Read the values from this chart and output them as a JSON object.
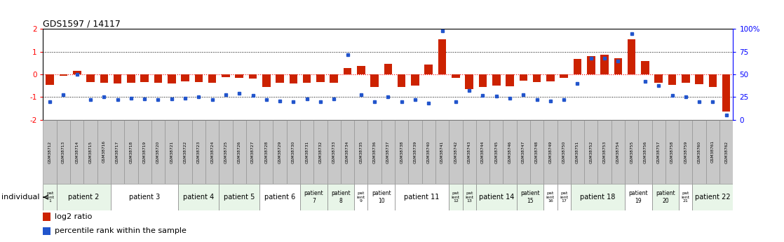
{
  "title": "GDS1597 / 14117",
  "samples": [
    "GSM38712",
    "GSM38713",
    "GSM38714",
    "GSM38715",
    "GSM38716",
    "GSM38717",
    "GSM38718",
    "GSM38719",
    "GSM38720",
    "GSM38721",
    "GSM38722",
    "GSM38723",
    "GSM38724",
    "GSM38725",
    "GSM38726",
    "GSM38727",
    "GSM38728",
    "GSM38729",
    "GSM38730",
    "GSM38731",
    "GSM38732",
    "GSM38733",
    "GSM38734",
    "GSM38735",
    "GSM38736",
    "GSM38737",
    "GSM38738",
    "GSM38739",
    "GSM38740",
    "GSM38741",
    "GSM38742",
    "GSM38743",
    "GSM38744",
    "GSM38745",
    "GSM38746",
    "GSM38747",
    "GSM38748",
    "GSM38749",
    "GSM38750",
    "GSM38751",
    "GSM38752",
    "GSM38753",
    "GSM38754",
    "GSM38755",
    "GSM38756",
    "GSM38757",
    "GSM38758",
    "GSM38759",
    "GSM38760",
    "GSM38761",
    "GSM38762"
  ],
  "log2_ratio": [
    -0.45,
    -0.05,
    0.15,
    -0.35,
    -0.38,
    -0.4,
    -0.38,
    -0.35,
    -0.38,
    -0.4,
    -0.32,
    -0.35,
    -0.38,
    -0.12,
    -0.15,
    -0.18,
    -0.55,
    -0.38,
    -0.4,
    -0.38,
    -0.35,
    -0.38,
    0.28,
    0.38,
    -0.55,
    0.48,
    -0.55,
    -0.48,
    0.45,
    1.55,
    -0.15,
    -0.65,
    -0.55,
    -0.48,
    -0.52,
    -0.28,
    -0.35,
    -0.32,
    -0.15,
    0.68,
    0.82,
    0.88,
    0.72,
    1.55,
    0.58,
    -0.38,
    -0.45,
    -0.38,
    -0.42,
    -0.55,
    -1.65
  ],
  "percentile": [
    20,
    28,
    50,
    22,
    25,
    22,
    24,
    23,
    22,
    23,
    24,
    25,
    22,
    28,
    29,
    27,
    22,
    21,
    20,
    23,
    20,
    23,
    72,
    28,
    20,
    25,
    20,
    22,
    18,
    98,
    20,
    32,
    27,
    26,
    24,
    28,
    22,
    21,
    22,
    40,
    68,
    68,
    65,
    95,
    42,
    38,
    27,
    25,
    20,
    20,
    5
  ],
  "patients": [
    {
      "label": "patient 1",
      "start": 0,
      "end": 1,
      "color": "#e8f5e8"
    },
    {
      "label": "patient 2",
      "start": 1,
      "end": 5,
      "color": "#e8f5e8"
    },
    {
      "label": "patient 3",
      "start": 5,
      "end": 10,
      "color": "#ffffff"
    },
    {
      "label": "patient 4",
      "start": 10,
      "end": 13,
      "color": "#e8f5e8"
    },
    {
      "label": "patient 5",
      "start": 13,
      "end": 16,
      "color": "#e8f5e8"
    },
    {
      "label": "patient 6",
      "start": 16,
      "end": 19,
      "color": "#ffffff"
    },
    {
      "label": "patient 7",
      "start": 19,
      "end": 21,
      "color": "#e8f5e8"
    },
    {
      "label": "patient 8",
      "start": 21,
      "end": 23,
      "color": "#e8f5e8"
    },
    {
      "label": "patient 9",
      "start": 23,
      "end": 24,
      "color": "#ffffff"
    },
    {
      "label": "patient 10",
      "start": 24,
      "end": 26,
      "color": "#ffffff"
    },
    {
      "label": "patient 11",
      "start": 26,
      "end": 30,
      "color": "#ffffff"
    },
    {
      "label": "patient 12",
      "start": 30,
      "end": 31,
      "color": "#e8f5e8"
    },
    {
      "label": "patient 13",
      "start": 31,
      "end": 32,
      "color": "#e8f5e8"
    },
    {
      "label": "patient 14",
      "start": 32,
      "end": 35,
      "color": "#e8f5e8"
    },
    {
      "label": "patient 15",
      "start": 35,
      "end": 37,
      "color": "#e8f5e8"
    },
    {
      "label": "patient 16",
      "start": 37,
      "end": 38,
      "color": "#ffffff"
    },
    {
      "label": "patient 17",
      "start": 38,
      "end": 39,
      "color": "#ffffff"
    },
    {
      "label": "patient 18",
      "start": 39,
      "end": 43,
      "color": "#e8f5e8"
    },
    {
      "label": "patient 19",
      "start": 43,
      "end": 45,
      "color": "#ffffff"
    },
    {
      "label": "patient 20",
      "start": 45,
      "end": 47,
      "color": "#e8f5e8"
    },
    {
      "label": "patient 21",
      "start": 47,
      "end": 48,
      "color": "#ffffff"
    },
    {
      "label": "patient 22",
      "start": 48,
      "end": 51,
      "color": "#e8f5e8"
    }
  ],
  "ylim": [
    -2.0,
    2.0
  ],
  "bar_color": "#cc2200",
  "dot_color": "#2255cc",
  "sample_box_color": "#c8c8c8",
  "individual_label": "individual",
  "legend_labels": [
    "log2 ratio",
    "percentile rank within the sample"
  ]
}
